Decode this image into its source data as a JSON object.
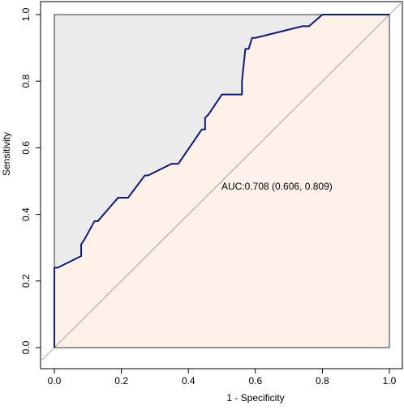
{
  "chart_data": {
    "type": "line",
    "title": "",
    "xlabel": "1 - Specificity",
    "ylabel": "Sensitivity",
    "xlim": [
      0,
      1
    ],
    "ylim": [
      0,
      1
    ],
    "x_ticks": [
      "0.0",
      "0.2",
      "0.4",
      "0.6",
      "0.8",
      "1.0"
    ],
    "y_ticks": [
      "0.0",
      "0.2",
      "0.4",
      "0.6",
      "0.8",
      "1.0"
    ],
    "grid": false,
    "annotation": "AUC:0.708 (0.606, 0.809)",
    "reference_line": {
      "from": [
        0,
        0
      ],
      "to": [
        1,
        1
      ]
    },
    "colors": {
      "curve": "#0d1a80",
      "area_above": "#ebebeb",
      "area_below": "#fdf1ea",
      "diagonal": "#a0a0a0",
      "axis": "#000000"
    },
    "series": [
      {
        "x": [
          0,
          0,
          0.01,
          0.08,
          0.08,
          0.09,
          0.12,
          0.13,
          0.19,
          0.22,
          0.27,
          0.28,
          0.35,
          0.37,
          0.44,
          0.45,
          0.45,
          0.46,
          0.5,
          0.56,
          0.56,
          0.57,
          0.58,
          0.59,
          0.6,
          0.74,
          0.76,
          0.8,
          1.0
        ],
        "y": [
          0,
          0.24,
          0.24,
          0.275,
          0.31,
          0.325,
          0.38,
          0.38,
          0.45,
          0.45,
          0.517,
          0.517,
          0.552,
          0.552,
          0.655,
          0.655,
          0.69,
          0.7,
          0.76,
          0.76,
          0.8,
          0.897,
          0.897,
          0.93,
          0.93,
          0.965,
          0.965,
          1.0,
          1.0
        ]
      }
    ]
  }
}
